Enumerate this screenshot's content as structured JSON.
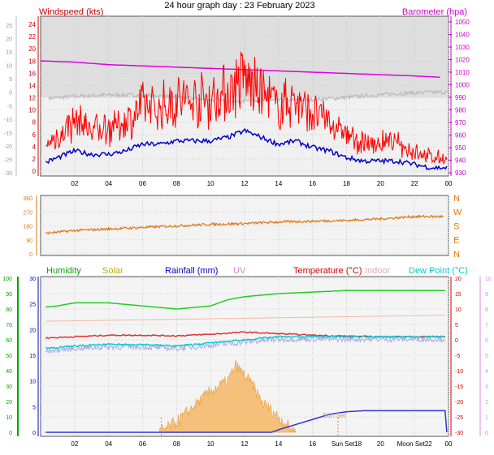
{
  "title": "24 hour graph day : 23 February 2023",
  "panel1": {
    "left_label": "Windspeed (kts)",
    "right_label": "Barometer (hpa)",
    "colors": {
      "wind": "#ff0000",
      "baro": "#e000e0",
      "temp": "#bbbbbb",
      "avg": "#0000cc",
      "axis_left": "#cc0000",
      "axis_right": "#dd00dd"
    }
  },
  "panel3": {
    "legend": {
      "humidity": "Humidity",
      "solar": "Solar",
      "rainfall": "Rainfall (mm)",
      "uv": "UV",
      "temperature": "Temperature (°C)",
      "indoor": "Indoor",
      "dewpoint": "Dew Point (°C)"
    },
    "annotations": {
      "sun_set_top": "Sun Set",
      "sun_set_axis": "Sun Set",
      "moon_set": "Moon Set"
    },
    "colors": {
      "humidity": "#00aa00",
      "solar": "#bbaa00",
      "rainfall": "#0000cc",
      "uv": "#dd88dd",
      "temperature": "#cc0000",
      "indoor": "#ddaaaa",
      "dewpoint": "#00cccc"
    }
  },
  "chart_data": [
    {
      "type": "line",
      "title": "24 hour graph day : 23 February 2023",
      "x_ticks": [
        "02",
        "04",
        "06",
        "08",
        "10",
        "12",
        "14",
        "16",
        "18",
        "20",
        "22",
        "00"
      ],
      "y_left_ticks": [
        "0",
        "2",
        "4",
        "6",
        "8",
        "10",
        "12",
        "14",
        "16",
        "18",
        "20",
        "22",
        "24"
      ],
      "y_left2_ticks": [
        "-30",
        "-25",
        "-20",
        "-15",
        "-10",
        "-5",
        "0",
        "5",
        "10",
        "15",
        "20",
        "25"
      ],
      "y_right_ticks": [
        "930",
        "940",
        "950",
        "960",
        "970",
        "980",
        "990",
        "1000",
        "1010",
        "1020",
        "1030",
        "1040",
        "1050"
      ],
      "ylabel_left": "Windspeed (kts)",
      "ylabel_right": "Barometer (hpa)",
      "series": [
        {
          "name": "Barometer (hpa)",
          "x": [
            0,
            2,
            4,
            6,
            8,
            10,
            12,
            14,
            16,
            18,
            20,
            22,
            23.5
          ],
          "values": [
            1019,
            1018,
            1016,
            1015,
            1014,
            1013,
            1012,
            1011,
            1010,
            1009,
            1008,
            1007,
            1006
          ]
        },
        {
          "name": "Windspeed (kts)",
          "x": [
            0,
            1,
            2,
            3,
            4,
            5,
            6,
            7,
            8,
            9,
            10,
            11,
            12,
            13,
            14,
            15,
            16,
            17,
            18,
            19,
            20,
            21,
            22,
            23,
            24
          ],
          "values": [
            2,
            4,
            6,
            5,
            5,
            6,
            8,
            8,
            9,
            9,
            9,
            10,
            12,
            10,
            8,
            9,
            7,
            6,
            4,
            3,
            3,
            3,
            2,
            1,
            1
          ]
        }
      ]
    },
    {
      "type": "line",
      "x_ticks": [
        "02",
        "04",
        "06",
        "08",
        "10",
        "12",
        "14",
        "16",
        "18",
        "20",
        "22",
        "00"
      ],
      "y_left_ticks": [
        "0",
        "90",
        "180",
        "270",
        "360"
      ],
      "y_right_ticks": [
        "N",
        "E",
        "S",
        "W",
        "N"
      ],
      "series": [
        {
          "x": [
            0,
            2,
            4,
            6,
            8,
            10,
            12,
            14,
            16,
            18,
            20,
            22,
            23.5
          ],
          "values": [
            130,
            150,
            160,
            170,
            180,
            190,
            195,
            205,
            210,
            215,
            225,
            240,
            240
          ]
        }
      ]
    },
    {
      "type": "line",
      "x_ticks": [
        "02",
        "04",
        "06",
        "08",
        "10",
        "12",
        "14",
        "16",
        "Sun Set18",
        "20",
        "Moon Set22",
        "00"
      ],
      "y_left_ticks": [
        "0",
        "10",
        "20",
        "30",
        "40",
        "50",
        "60",
        "70",
        "80",
        "90",
        "100"
      ],
      "y_left2_ticks": [
        "0",
        "5",
        "10",
        "15",
        "20",
        "25",
        "30"
      ],
      "y_right_ticks": [
        "-30",
        "-25",
        "-20",
        "-15",
        "-10",
        "-5",
        "0",
        "5",
        "10",
        "15",
        "20"
      ],
      "y_right2_ticks": [
        "0",
        "1",
        "2",
        "3",
        "4",
        "5",
        "6",
        "7",
        "8",
        "9",
        "10"
      ],
      "series": [
        {
          "name": "Humidity",
          "x": [
            0,
            1,
            2,
            4,
            6,
            8,
            10,
            11,
            12,
            14,
            16,
            18,
            20,
            22,
            23.9
          ],
          "values": [
            81,
            82,
            84,
            84,
            82,
            80,
            82,
            86,
            88,
            90,
            91,
            92,
            92,
            92,
            92
          ]
        },
        {
          "name": "Rainfall (mm)",
          "x": [
            0,
            13.6,
            14,
            15,
            16,
            17,
            18,
            19,
            20,
            22,
            23.9
          ],
          "values": [
            0,
            0,
            0.5,
            1.5,
            2.5,
            3.5,
            4,
            4.2,
            4.2,
            4.2,
            4.2
          ]
        },
        {
          "name": "Temperature (°C)",
          "x": [
            0,
            2,
            4,
            6,
            8,
            10,
            12,
            14,
            16,
            18,
            20,
            22,
            23.9
          ],
          "values": [
            0.5,
            1,
            1.5,
            1.5,
            1.3,
            1.8,
            2.5,
            2,
            1.5,
            1.2,
            1,
            1,
            1
          ]
        },
        {
          "name": "Dew Point (°C)",
          "x": [
            0,
            2,
            4,
            6,
            8,
            10,
            12,
            14,
            16,
            18,
            20,
            22,
            23.9
          ],
          "values": [
            -3,
            -2,
            -1.5,
            -1.5,
            -2,
            -1,
            0,
            1,
            1,
            1,
            1,
            1,
            1
          ]
        },
        {
          "name": "Indoor",
          "x": [
            0,
            12,
            23.9
          ],
          "values": [
            72,
            74,
            76
          ]
        },
        {
          "name": "Solar",
          "x": [
            7,
            8,
            9,
            10,
            11,
            11.5,
            12,
            12.5,
            13,
            14,
            15
          ],
          "values": [
            0,
            2,
            5,
            8,
            10,
            13,
            11,
            9,
            6,
            3,
            0
          ]
        }
      ]
    }
  ]
}
